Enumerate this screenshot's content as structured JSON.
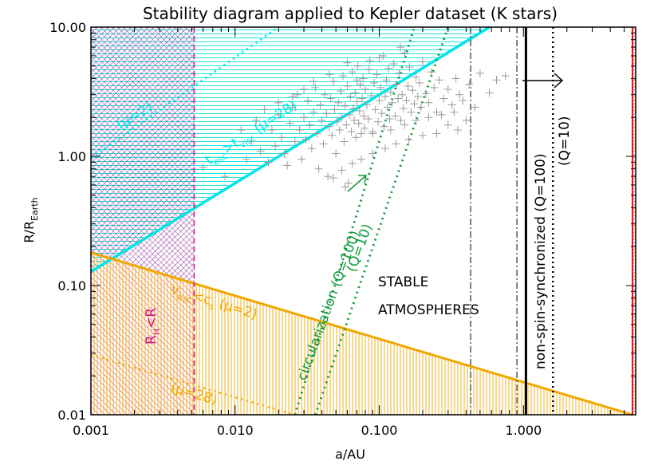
{
  "chart_data": {
    "type": "scatter",
    "title": "Stability diagram applied to Kepler dataset (K stars)",
    "xlabel": "a/AU",
    "ylabel_main": "R/R",
    "ylabel_sub": "Earth",
    "xscale": "log",
    "yscale": "log",
    "xlim": [
      0.001,
      6.0
    ],
    "ylim": [
      0.01,
      10.0
    ],
    "x_ticks": [
      {
        "value": 0.001,
        "label": "0.001"
      },
      {
        "value": 0.01,
        "label": "0.010"
      },
      {
        "value": 0.1,
        "label": "0.100"
      },
      {
        "value": 1.0,
        "label": "1.000"
      }
    ],
    "y_ticks": [
      {
        "value": 0.01,
        "label": "0.01"
      },
      {
        "value": 0.1,
        "label": "0.10"
      },
      {
        "value": 1.0,
        "label": "1.00"
      },
      {
        "value": 10.0,
        "label": "10.00"
      }
    ],
    "colors": {
      "cyan": "#00e5e5",
      "orange": "#f0a800",
      "green": "#129a3c",
      "magenta": "#d01880",
      "blue": "#3a3aa8",
      "red": "#d42020",
      "points": "#9a9a9a"
    },
    "lines": {
      "cyan_mu28": {
        "points": [
          [
            0.001,
            0.128
          ],
          [
            0.58,
            10.0
          ]
        ]
      },
      "cyan_mu2": {
        "points": [
          [
            0.001,
            0.97
          ],
          [
            0.02,
            10.0
          ]
        ]
      },
      "orange_mu2": {
        "points": [
          [
            0.001,
            0.18
          ],
          [
            5.7,
            0.01
          ]
        ]
      },
      "orange_mu28": {
        "points": [
          [
            0.001,
            0.029
          ],
          [
            0.026,
            0.01
          ]
        ]
      },
      "green_q100": {
        "points": [
          [
            0.026,
            0.01
          ],
          [
            0.175,
            10.0
          ]
        ]
      },
      "green_q10": {
        "points": [
          [
            0.036,
            0.01
          ],
          [
            0.3,
            10.0
          ]
        ]
      },
      "roche_vertical_a": 0.0052,
      "dashdot_1": 0.43,
      "dashdot_2": 0.9,
      "black_q100": 1.04,
      "black_q10": 1.6,
      "red_limit": 5.7
    },
    "annotations": [
      {
        "id": "mu2_cyan",
        "text": "(μ=2)"
      },
      {
        "id": "tesc",
        "main": "t",
        "sub1": "esc",
        "mid": ">t",
        "sub2": "visc",
        "tail": " (μ=28)"
      },
      {
        "id": "hill",
        "main": "R",
        "sub": "H",
        "tail": "<R"
      },
      {
        "id": "vesc",
        "main": "v",
        "sub1": "esc",
        "mid": "<c",
        "sub2": "s",
        "tail": " (μ=2)"
      },
      {
        "id": "mu28_orange",
        "text": "(μ=28)"
      },
      {
        "id": "circ",
        "text": "circularization (Q=100)"
      },
      {
        "id": "circ_q10",
        "text": "(Q=10)"
      },
      {
        "id": "stable1",
        "text": "STABLE"
      },
      {
        "id": "stable2",
        "text": "ATMOSPHERES"
      },
      {
        "id": "nonspin",
        "text": "non-spin-synchronized (Q=100)"
      },
      {
        "id": "nonspin_q10",
        "text": "(Q=10)"
      }
    ],
    "points": [
      [
        0.006,
        0.82
      ],
      [
        0.0085,
        0.7
      ],
      [
        0.012,
        0.95
      ],
      [
        0.013,
        1.3
      ],
      [
        0.015,
        1.1
      ],
      [
        0.017,
        0.9
      ],
      [
        0.018,
        1.6
      ],
      [
        0.019,
        1.2
      ],
      [
        0.02,
        2.1
      ],
      [
        0.021,
        1.4
      ],
      [
        0.022,
        1.05
      ],
      [
        0.023,
        0.85
      ],
      [
        0.024,
        1.8
      ],
      [
        0.025,
        2.4
      ],
      [
        0.026,
        1.3
      ],
      [
        0.027,
        3.0
      ],
      [
        0.028,
        1.6
      ],
      [
        0.029,
        0.95
      ],
      [
        0.03,
        2.0
      ],
      [
        0.031,
        1.35
      ],
      [
        0.032,
        2.7
      ],
      [
        0.033,
        1.75
      ],
      [
        0.034,
        1.15
      ],
      [
        0.035,
        2.2
      ],
      [
        0.036,
        3.4
      ],
      [
        0.037,
        1.5
      ],
      [
        0.038,
        0.8
      ],
      [
        0.039,
        2.5
      ],
      [
        0.04,
        1.9
      ],
      [
        0.041,
        1.25
      ],
      [
        0.042,
        3.0
      ],
      [
        0.043,
        2.15
      ],
      [
        0.044,
        0.7
      ],
      [
        0.045,
        1.7
      ],
      [
        0.046,
        2.8
      ],
      [
        0.047,
        1.45
      ],
      [
        0.048,
        3.8
      ],
      [
        0.049,
        2.3
      ],
      [
        0.05,
        1.05
      ],
      [
        0.051,
        1.85
      ],
      [
        0.052,
        2.6
      ],
      [
        0.053,
        1.6
      ],
      [
        0.054,
        3.2
      ],
      [
        0.055,
        2.0
      ],
      [
        0.056,
        4.2
      ],
      [
        0.057,
        1.3
      ],
      [
        0.058,
        2.45
      ],
      [
        0.059,
        1.75
      ],
      [
        0.06,
        3.5
      ],
      [
        0.061,
        0.62
      ],
      [
        0.062,
        2.1
      ],
      [
        0.063,
        2.9
      ],
      [
        0.064,
        1.55
      ],
      [
        0.065,
        4.5
      ],
      [
        0.066,
        2.35
      ],
      [
        0.067,
        1.9
      ],
      [
        0.068,
        3.1
      ],
      [
        0.069,
        1.4
      ],
      [
        0.07,
        2.65
      ],
      [
        0.071,
        5.0
      ],
      [
        0.072,
        1.8
      ],
      [
        0.073,
        2.25
      ],
      [
        0.074,
        3.6
      ],
      [
        0.075,
        1.5
      ],
      [
        0.076,
        2.8
      ],
      [
        0.077,
        4.0
      ],
      [
        0.078,
        2.05
      ],
      [
        0.079,
        1.65
      ],
      [
        0.08,
        3.3
      ],
      [
        0.082,
        2.5
      ],
      [
        0.084,
        1.95
      ],
      [
        0.086,
        5.5
      ],
      [
        0.088,
        2.95
      ],
      [
        0.09,
        1.55
      ],
      [
        0.092,
        3.7
      ],
      [
        0.094,
        2.3
      ],
      [
        0.096,
        4.3
      ],
      [
        0.098,
        1.85
      ],
      [
        0.1,
        2.7
      ],
      [
        0.102,
        3.4
      ],
      [
        0.104,
        2.15
      ],
      [
        0.106,
        6.0
      ],
      [
        0.108,
        1.7
      ],
      [
        0.11,
        2.9
      ],
      [
        0.112,
        3.9
      ],
      [
        0.114,
        2.4
      ],
      [
        0.116,
        4.8
      ],
      [
        0.118,
        1.95
      ],
      [
        0.12,
        3.15
      ],
      [
        0.123,
        2.6
      ],
      [
        0.126,
        5.2
      ],
      [
        0.129,
        2.05
      ],
      [
        0.132,
        3.6
      ],
      [
        0.135,
        2.8
      ],
      [
        0.138,
        4.4
      ],
      [
        0.141,
        1.9
      ],
      [
        0.144,
        3.0
      ],
      [
        0.147,
        2.35
      ],
      [
        0.15,
        6.3
      ],
      [
        0.154,
        2.7
      ],
      [
        0.158,
        3.5
      ],
      [
        0.162,
        4.9
      ],
      [
        0.166,
        2.2
      ],
      [
        0.17,
        3.25
      ],
      [
        0.175,
        2.55
      ],
      [
        0.18,
        4.1
      ],
      [
        0.185,
        2.9
      ],
      [
        0.19,
        3.7
      ],
      [
        0.195,
        2.4
      ],
      [
        0.2,
        5.4
      ],
      [
        0.21,
        3.05
      ],
      [
        0.22,
        2.6
      ],
      [
        0.23,
        4.5
      ],
      [
        0.24,
        3.4
      ],
      [
        0.25,
        2.2
      ],
      [
        0.26,
        3.9
      ],
      [
        0.28,
        2.8
      ],
      [
        0.3,
        3.3
      ],
      [
        0.32,
        2.5
      ],
      [
        0.34,
        4.0
      ],
      [
        0.36,
        3.0
      ],
      [
        0.38,
        2.7
      ],
      [
        0.42,
        3.6
      ],
      [
        0.46,
        2.4
      ],
      [
        0.5,
        4.4
      ],
      [
        0.58,
        3.1
      ],
      [
        0.65,
        3.9
      ],
      [
        0.75,
        4.2
      ],
      [
        0.4,
        1.9
      ],
      [
        0.35,
        1.6
      ],
      [
        0.3,
        1.75
      ],
      [
        0.25,
        1.5
      ],
      [
        0.2,
        1.45
      ],
      [
        0.16,
        1.35
      ],
      [
        0.13,
        1.25
      ],
      [
        0.11,
        1.15
      ],
      [
        0.09,
        1.05
      ],
      [
        0.075,
        0.95
      ],
      [
        0.065,
        0.88
      ],
      [
        0.055,
        0.78
      ],
      [
        0.048,
        0.68
      ],
      [
        0.058,
        0.58
      ],
      [
        0.09,
        1.5
      ],
      [
        0.12,
        1.6
      ],
      [
        0.15,
        1.75
      ],
      [
        0.18,
        1.9
      ],
      [
        0.22,
        2.0
      ],
      [
        0.27,
        2.1
      ],
      [
        0.33,
        2.2
      ],
      [
        0.14,
        7.0
      ],
      [
        0.1,
        5.8
      ],
      [
        0.085,
        4.7
      ],
      [
        0.07,
        3.9
      ],
      [
        0.06,
        5.3
      ],
      [
        0.045,
        4.3
      ],
      [
        0.035,
        3.8
      ],
      [
        0.03,
        3.3
      ],
      [
        0.025,
        2.9
      ],
      [
        0.02,
        2.6
      ],
      [
        0.016,
        2.3
      ],
      [
        0.014,
        1.9
      ],
      [
        0.011,
        1.6
      ]
    ]
  }
}
